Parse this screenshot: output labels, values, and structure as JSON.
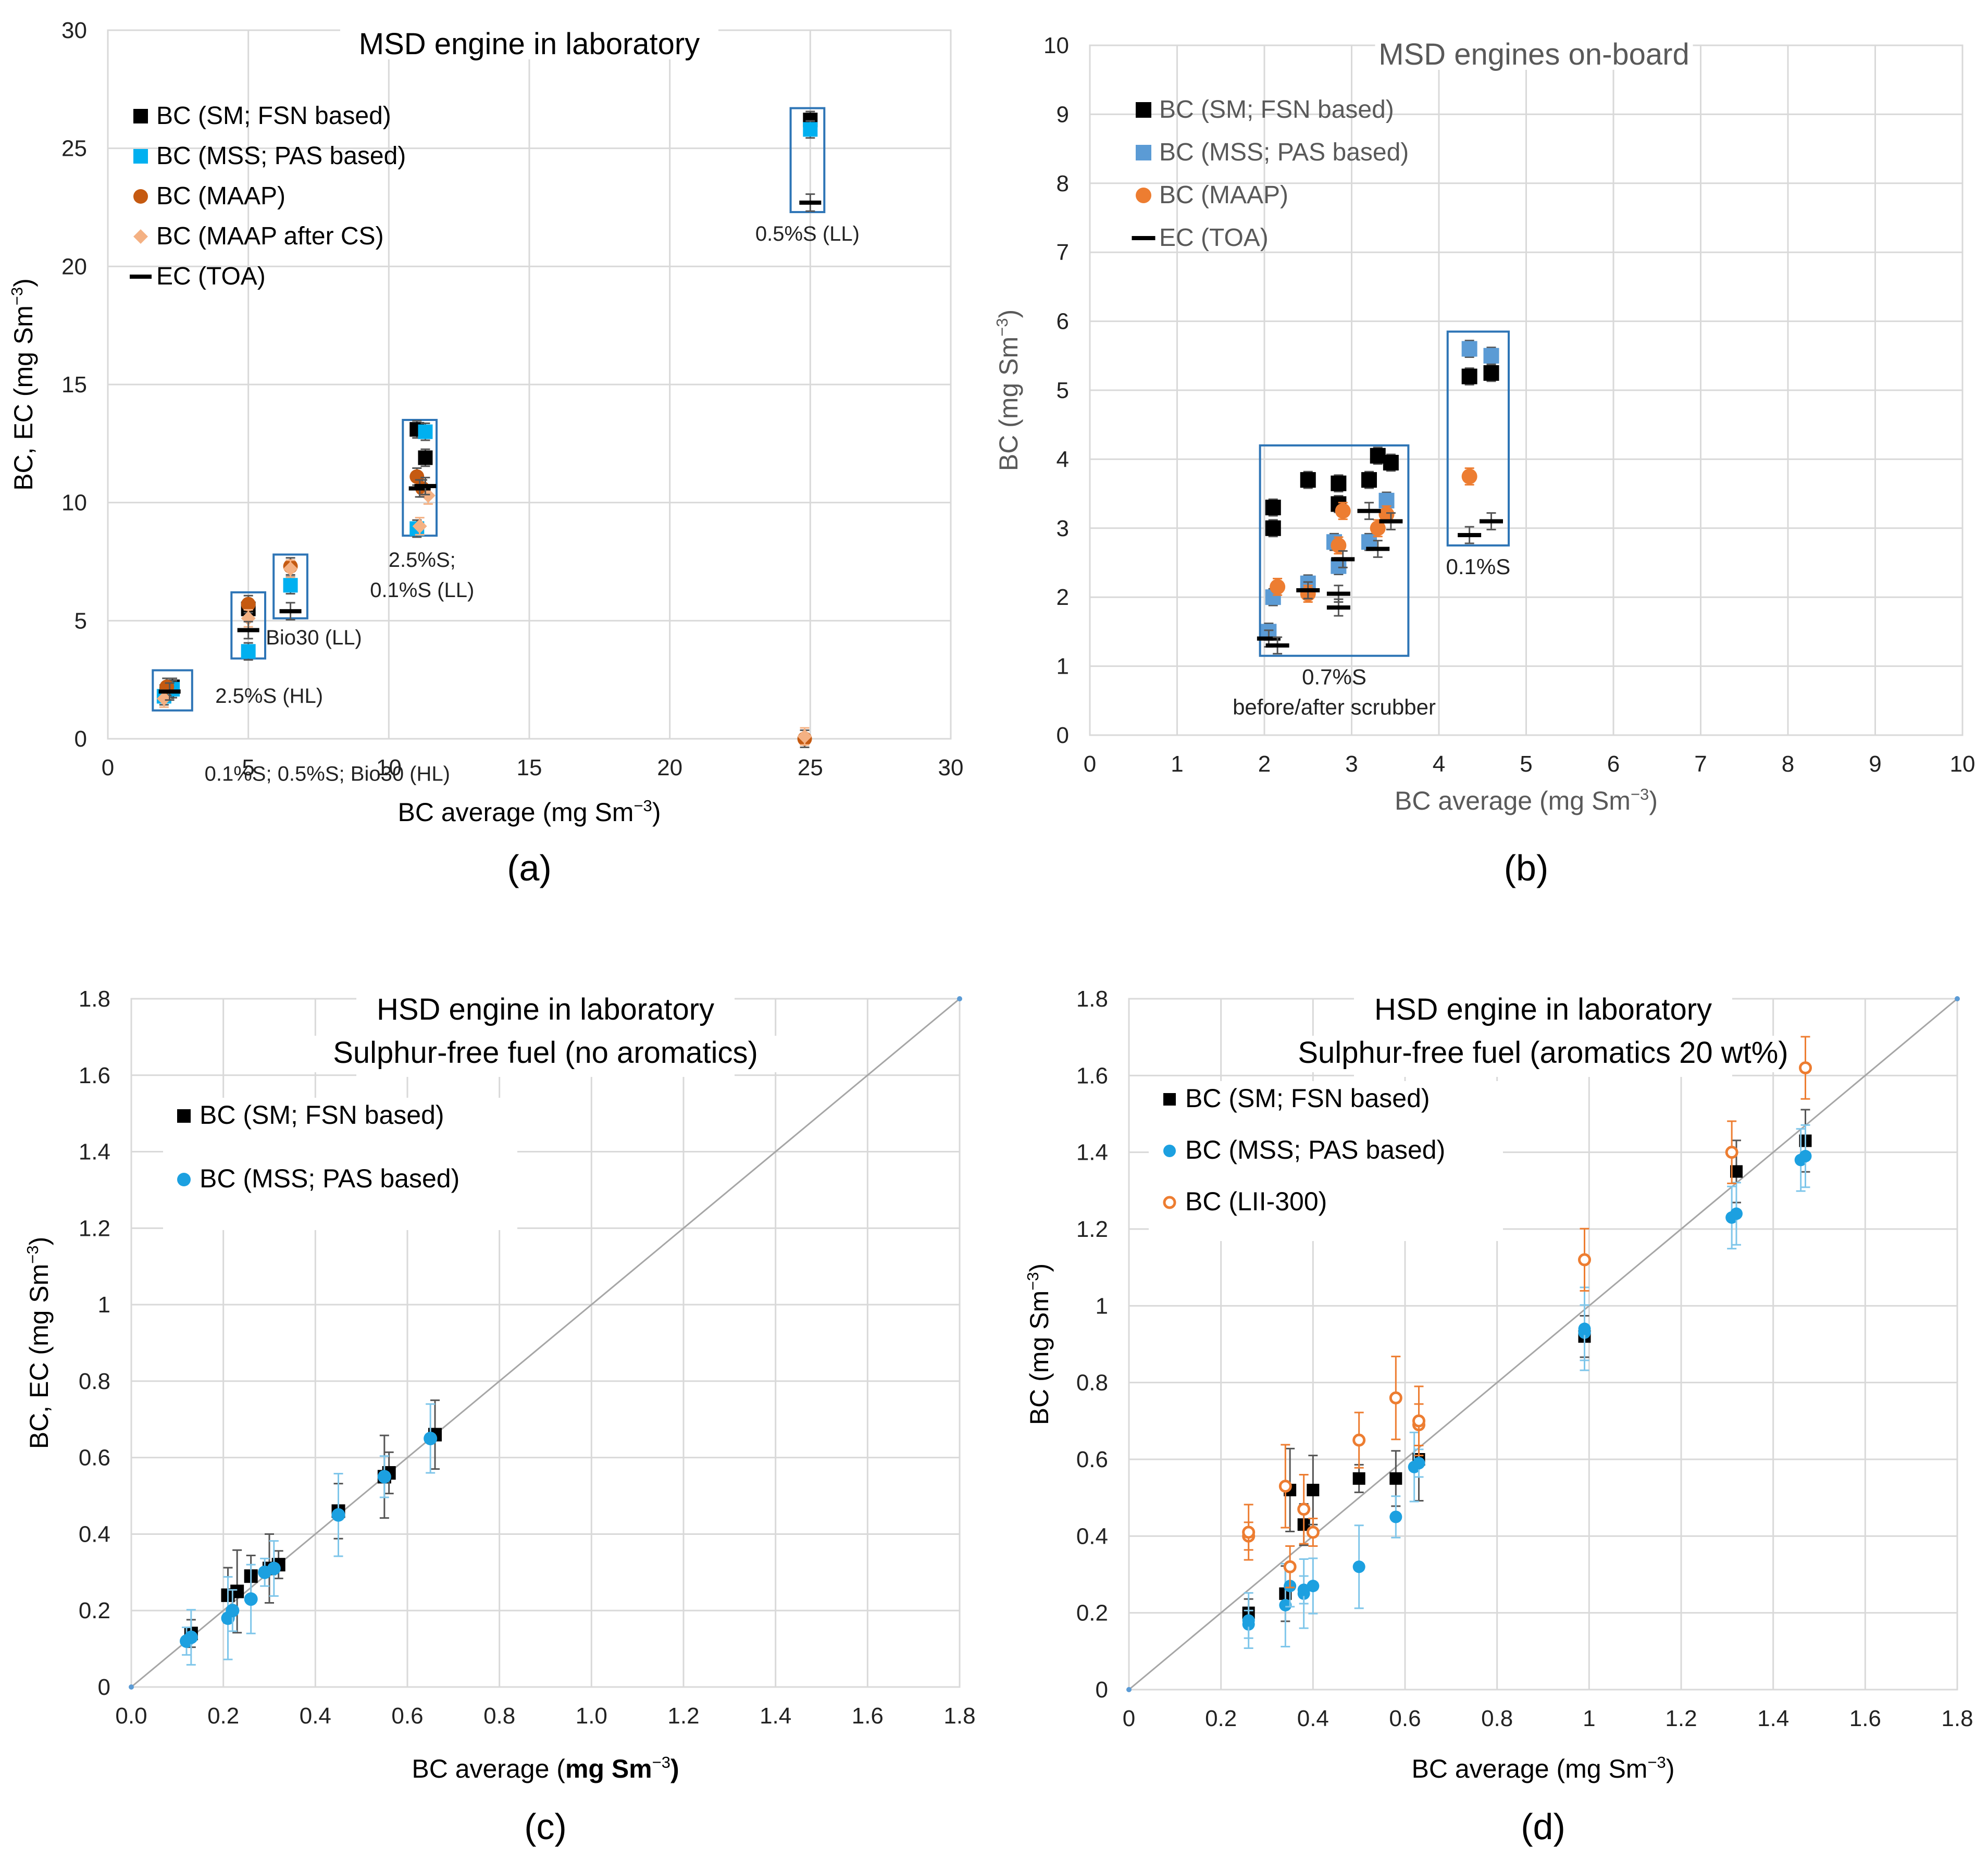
{
  "chart_data": [
    {
      "panel": "(a)",
      "type": "scatter",
      "title": "MSD engine in laboratory",
      "xlabel": "BC average (mg Sm",
      "ylabel": "BC, EC (mg Sm",
      "unit_exp": "−3",
      "xlim": [
        0,
        30
      ],
      "ylim": [
        0,
        30
      ],
      "xticks": [
        "0",
        "5",
        "10",
        "15",
        "20",
        "25",
        "30"
      ],
      "yticks": [
        "0",
        "5",
        "10",
        "15",
        "20",
        "25",
        "30"
      ],
      "legend": [
        {
          "label": "BC (SM; FSN based)",
          "marker": "square",
          "color": "#000000"
        },
        {
          "label": "BC (MSS; PAS based)",
          "marker": "square",
          "color": "#00B0F0"
        },
        {
          "label": "BC (MAAP)",
          "marker": "circle",
          "color": "#C55A11"
        },
        {
          "label": "BC (MAAP after CS)",
          "marker": "diamond",
          "color": "#F4B183"
        },
        {
          "label": "EC (TOA)",
          "marker": "dash",
          "color": "#000000"
        }
      ],
      "series": [
        {
          "name": "BC (SM; FSN based)",
          "points": [
            [
              2.1,
              2.0
            ],
            [
              2.3,
              2.2
            ],
            [
              5.0,
              5.5
            ],
            [
              11.0,
              13.1
            ],
            [
              11.3,
              11.9
            ],
            [
              25.0,
              26.2
            ]
          ]
        },
        {
          "name": "BC (MSS; PAS based)",
          "points": [
            [
              2.0,
              1.8
            ],
            [
              2.3,
              2.1
            ],
            [
              5.0,
              3.7
            ],
            [
              6.5,
              6.5
            ],
            [
              11.0,
              8.9
            ],
            [
              11.3,
              13.0
            ],
            [
              25.0,
              25.8
            ]
          ]
        },
        {
          "name": "BC (MAAP)",
          "points": [
            [
              2.1,
              2.2
            ],
            [
              5.0,
              5.7
            ],
            [
              6.5,
              7.3
            ],
            [
              11.0,
              11.1
            ],
            [
              11.2,
              10.6
            ],
            [
              24.8,
              0.0
            ]
          ]
        },
        {
          "name": "BC (MAAP after CS)",
          "points": [
            [
              2.0,
              1.7
            ],
            [
              5.0,
              5.1
            ],
            [
              6.5,
              7.2
            ],
            [
              11.1,
              9.0
            ],
            [
              11.4,
              10.3
            ],
            [
              24.8,
              0.1
            ]
          ]
        },
        {
          "name": "EC (TOA)",
          "points": [
            [
              2.2,
              2.0
            ],
            [
              5.0,
              4.6
            ],
            [
              6.5,
              5.4
            ],
            [
              11.1,
              10.6
            ],
            [
              11.3,
              10.7
            ],
            [
              25.0,
              22.7
            ]
          ]
        }
      ],
      "groups": [
        {
          "label": "0.1%S; 0.5%S; Bio30 (HL)",
          "box": [
            1.6,
            3.0,
            1.2,
            2.9
          ]
        },
        {
          "label": "2.5%S (HL)",
          "box": [
            4.4,
            5.6,
            3.4,
            6.2
          ]
        },
        {
          "label": "Bio30 (LL)",
          "box": [
            5.9,
            7.1,
            5.1,
            7.8
          ]
        },
        {
          "label": "2.5%S;",
          "label2": "0.1%S (LL)",
          "box": [
            10.5,
            11.7,
            8.6,
            13.5
          ]
        },
        {
          "label": "0.5%S (LL)",
          "box": [
            24.3,
            25.5,
            22.3,
            26.7
          ]
        }
      ]
    },
    {
      "panel": "(b)",
      "type": "scatter",
      "title": "MSD engines on-board",
      "xlabel": "BC average (mg Sm",
      "ylabel": "BC (mg Sm",
      "unit_exp": "−3",
      "xlim": [
        0,
        10
      ],
      "ylim": [
        0,
        10
      ],
      "xticks": [
        "0",
        "1",
        "2",
        "3",
        "4",
        "5",
        "6",
        "7",
        "8",
        "9",
        "10"
      ],
      "yticks": [
        "0",
        "1",
        "2",
        "3",
        "4",
        "5",
        "6",
        "7",
        "8",
        "9",
        "10"
      ],
      "legend": [
        {
          "label": "BC (SM; FSN based)",
          "marker": "square",
          "color": "#000000"
        },
        {
          "label": "BC (MSS; PAS based)",
          "marker": "square",
          "color": "#5B9BD5"
        },
        {
          "label": "BC (MAAP)",
          "marker": "circle",
          "color": "#ED7D31"
        },
        {
          "label": "EC (TOA)",
          "marker": "dash",
          "color": "#000000"
        }
      ],
      "series": [
        {
          "name": "BC (SM; FSN based)",
          "points": [
            [
              2.1,
              3.3
            ],
            [
              2.1,
              3.0
            ],
            [
              2.5,
              3.7
            ],
            [
              2.85,
              3.65
            ],
            [
              2.85,
              3.35
            ],
            [
              3.2,
              3.7
            ],
            [
              3.3,
              4.05
            ],
            [
              3.45,
              3.95
            ],
            [
              4.35,
              5.2
            ],
            [
              4.6,
              5.25
            ]
          ]
        },
        {
          "name": "BC (MSS; PAS based)",
          "points": [
            [
              2.05,
              1.5
            ],
            [
              2.1,
              2.0
            ],
            [
              2.5,
              2.2
            ],
            [
              2.8,
              2.8
            ],
            [
              2.85,
              2.45
            ],
            [
              3.2,
              2.8
            ],
            [
              3.4,
              3.4
            ],
            [
              4.35,
              5.6
            ],
            [
              4.6,
              5.5
            ]
          ]
        },
        {
          "name": "BC (MAAP)",
          "points": [
            [
              2.15,
              2.15
            ],
            [
              2.5,
              2.05
            ],
            [
              2.85,
              2.75
            ],
            [
              2.9,
              3.25
            ],
            [
              3.3,
              3.0
            ],
            [
              3.4,
              3.2
            ],
            [
              4.35,
              3.75
            ]
          ]
        },
        {
          "name": "EC (TOA)",
          "points": [
            [
              2.05,
              1.4
            ],
            [
              2.15,
              1.3
            ],
            [
              2.5,
              2.1
            ],
            [
              2.85,
              1.85
            ],
            [
              2.85,
              2.05
            ],
            [
              2.9,
              2.55
            ],
            [
              3.2,
              3.25
            ],
            [
              3.3,
              2.7
            ],
            [
              3.45,
              3.1
            ],
            [
              4.35,
              2.9
            ],
            [
              4.6,
              3.1
            ]
          ]
        }
      ],
      "groups": [
        {
          "label": "0.7%S",
          "label2": "before/after scrubber",
          "box": [
            1.95,
            3.65,
            1.15,
            4.2
          ]
        },
        {
          "label": "0.1%S",
          "box": [
            4.1,
            4.8,
            2.75,
            5.85
          ]
        }
      ]
    },
    {
      "panel": "(c)",
      "type": "scatter",
      "title": "HSD engine in laboratory",
      "subtitle": "Sulphur-free  fuel (no aromatics)",
      "xlabel": "BC average (",
      "xlabel_bold": "mg Sm",
      "ylabel": "BC, EC (mg Sm",
      "unit_exp": "−3",
      "xlim": [
        0,
        1.8
      ],
      "ylim": [
        0,
        1.8
      ],
      "xticks": [
        "0.0",
        "0.2",
        "0.4",
        "0.6",
        "0.8",
        "1.0",
        "1.2",
        "1.4",
        "1.6",
        "1.8"
      ],
      "yticks": [
        "0",
        "0.2",
        "0.4",
        "0.6",
        "0.8",
        "1",
        "1.2",
        "1.4",
        "1.6",
        "1.8"
      ],
      "legend": [
        {
          "label": "BC (SM; FSN based)",
          "marker": "square",
          "color": "#000000"
        },
        {
          "label": "BC (MSS; PAS based)",
          "marker": "circle",
          "color": "#1CA0E0"
        }
      ],
      "series": [
        {
          "name": "BC (SM; FSN based)",
          "points": [
            [
              0.13,
              0.14
            ],
            [
              0.21,
              0.24
            ],
            [
              0.23,
              0.25
            ],
            [
              0.26,
              0.29
            ],
            [
              0.3,
              0.31
            ],
            [
              0.32,
              0.32
            ],
            [
              0.45,
              0.46
            ],
            [
              0.55,
              0.55
            ],
            [
              0.56,
              0.56
            ],
            [
              0.66,
              0.66
            ]
          ]
        },
        {
          "name": "BC (MSS; PAS based)",
          "points": [
            [
              0.12,
              0.12
            ],
            [
              0.13,
              0.13
            ],
            [
              0.21,
              0.18
            ],
            [
              0.22,
              0.2
            ],
            [
              0.26,
              0.23
            ],
            [
              0.29,
              0.3
            ],
            [
              0.31,
              0.31
            ],
            [
              0.45,
              0.45
            ],
            [
              0.55,
              0.55
            ],
            [
              0.65,
              0.65
            ]
          ]
        }
      ],
      "reference_line": "1:1"
    },
    {
      "panel": "(d)",
      "type": "scatter",
      "title": "HSD engine in laboratory",
      "subtitle": "Sulphur-free  fuel (aromatics 20 wt%)",
      "xlabel": "BC average (mg Sm",
      "ylabel": "BC (mg Sm",
      "unit_exp": "−3",
      "xlim": [
        0,
        1.8
      ],
      "ylim": [
        0,
        1.8
      ],
      "xticks": [
        "0",
        "0.2",
        "0.4",
        "0.6",
        "0.8",
        "1",
        "1.2",
        "1.4",
        "1.6",
        "1.8"
      ],
      "yticks": [
        "0",
        "0.2",
        "0.4",
        "0.6",
        "0.8",
        "1",
        "1.2",
        "1.4",
        "1.6",
        "1.8"
      ],
      "legend": [
        {
          "label": "BC (SM; FSN based)",
          "marker": "square",
          "color": "#000000"
        },
        {
          "label": "BC (MSS; PAS based)",
          "marker": "circle",
          "color": "#1CA0E0"
        },
        {
          "label": "BC (LII-300)",
          "marker": "open-circle",
          "color": "#ED7D31"
        }
      ],
      "series": [
        {
          "name": "BC (SM; FSN based)",
          "points": [
            [
              0.26,
              0.2
            ],
            [
              0.34,
              0.25
            ],
            [
              0.35,
              0.52
            ],
            [
              0.38,
              0.43
            ],
            [
              0.4,
              0.52
            ],
            [
              0.5,
              0.55
            ],
            [
              0.58,
              0.55
            ],
            [
              0.63,
              0.6
            ],
            [
              0.99,
              0.92
            ],
            [
              1.32,
              1.35
            ],
            [
              1.47,
              1.43
            ]
          ]
        },
        {
          "name": "BC (MSS; PAS based)",
          "points": [
            [
              0.26,
              0.17
            ],
            [
              0.26,
              0.18
            ],
            [
              0.34,
              0.22
            ],
            [
              0.35,
              0.27
            ],
            [
              0.38,
              0.25
            ],
            [
              0.38,
              0.26
            ],
            [
              0.4,
              0.27
            ],
            [
              0.5,
              0.32
            ],
            [
              0.58,
              0.45
            ],
            [
              0.62,
              0.58
            ],
            [
              0.63,
              0.59
            ],
            [
              0.99,
              0.93
            ],
            [
              0.99,
              0.94
            ],
            [
              1.31,
              1.23
            ],
            [
              1.32,
              1.24
            ],
            [
              1.46,
              1.38
            ],
            [
              1.47,
              1.39
            ]
          ]
        },
        {
          "name": "BC (LII-300)",
          "points": [
            [
              0.26,
              0.4
            ],
            [
              0.26,
              0.41
            ],
            [
              0.34,
              0.53
            ],
            [
              0.35,
              0.32
            ],
            [
              0.38,
              0.47
            ],
            [
              0.4,
              0.41
            ],
            [
              0.5,
              0.65
            ],
            [
              0.58,
              0.76
            ],
            [
              0.63,
              0.69
            ],
            [
              0.63,
              0.7
            ],
            [
              0.99,
              1.12
            ],
            [
              1.31,
              1.4
            ],
            [
              1.47,
              1.62
            ]
          ]
        }
      ],
      "reference_line": "1:1"
    }
  ]
}
